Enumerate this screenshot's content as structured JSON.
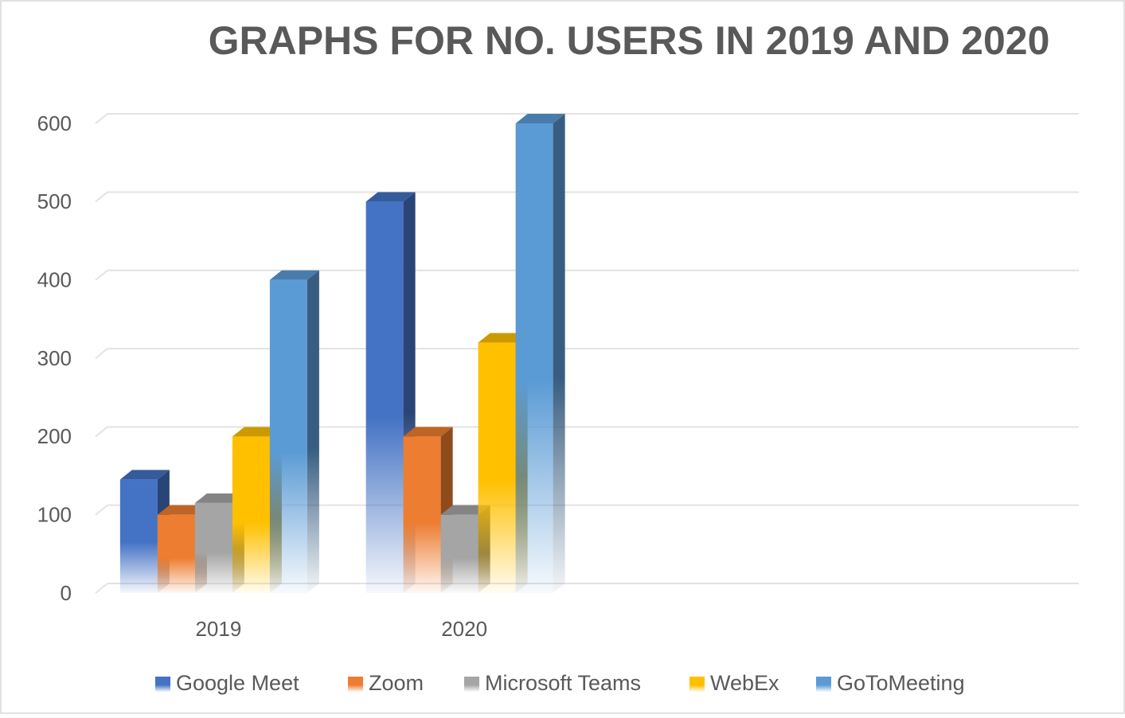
{
  "chart_data": {
    "type": "bar3d",
    "title": "GRAPHS FOR NO. USERS IN 2019 AND 2020",
    "categories": [
      "2019",
      "2020",
      null,
      null
    ],
    "series": [
      {
        "name": "Google Meet",
        "color": "#4472c4",
        "values": [
          145,
          500,
          null,
          null
        ]
      },
      {
        "name": "Zoom",
        "color": "#ed7d31",
        "values": [
          100,
          200,
          null,
          null
        ]
      },
      {
        "name": "Microsoft Teams",
        "color": "#a5a5a5",
        "values": [
          115,
          100,
          null,
          null
        ]
      },
      {
        "name": "WebEx",
        "color": "#ffc000",
        "values": [
          200,
          320,
          null,
          null
        ]
      },
      {
        "name": "GoToMeeting",
        "color": "#5b9bd5",
        "values": [
          400,
          600,
          null,
          null
        ]
      }
    ],
    "ylim": [
      0,
      600
    ],
    "yticks": [
      0,
      100,
      200,
      300,
      400,
      500,
      600
    ],
    "grid": true,
    "legend": "bottom"
  }
}
